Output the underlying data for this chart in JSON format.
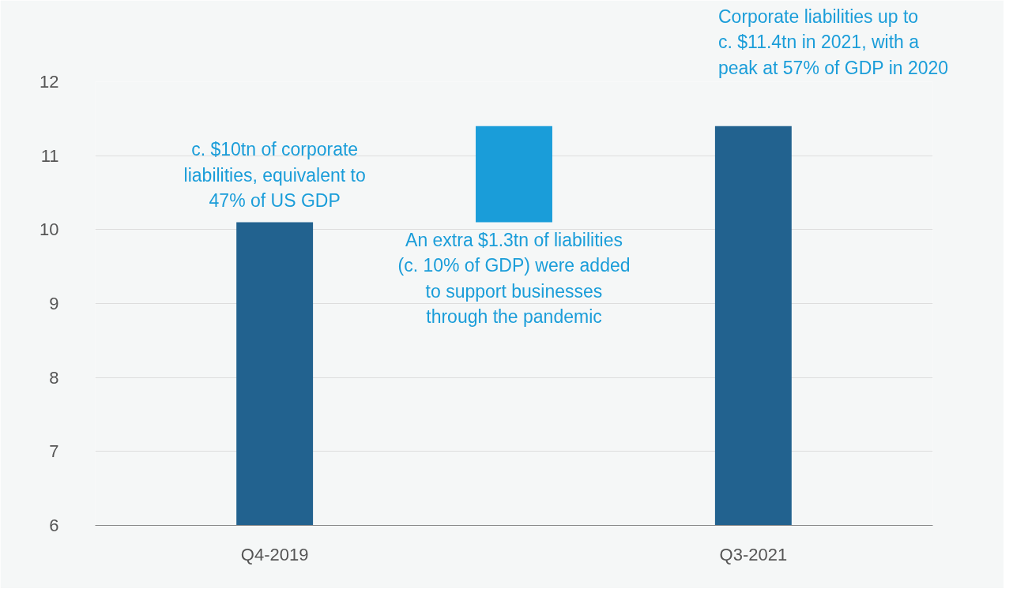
{
  "chart_data": {
    "type": "bar",
    "categories": [
      "Q4-2019",
      null,
      "Q3-2021"
    ],
    "values": [
      4.1,
      1.3,
      5.4
    ],
    "base": [
      6,
      10.1,
      6
    ],
    "colors": [
      "#22628f",
      "#1a9dd9",
      "#22628f"
    ],
    "ylim": [
      6,
      12
    ],
    "yticks": [
      6,
      7,
      8,
      9,
      10,
      11,
      12
    ],
    "grid": "y",
    "annotations": [
      "c. $10tn of corporate\nliabilities, equivalent to\n47% of US GDP",
      "An extra $1.3tn of liabilities\n(c. 10% of GDP) were added\nto support businesses\nthrough the pandemic",
      "Corporate liabilities up to\nc. $11.4tn in 2021, with a\npeak at 57% of GDP in 2020"
    ]
  }
}
